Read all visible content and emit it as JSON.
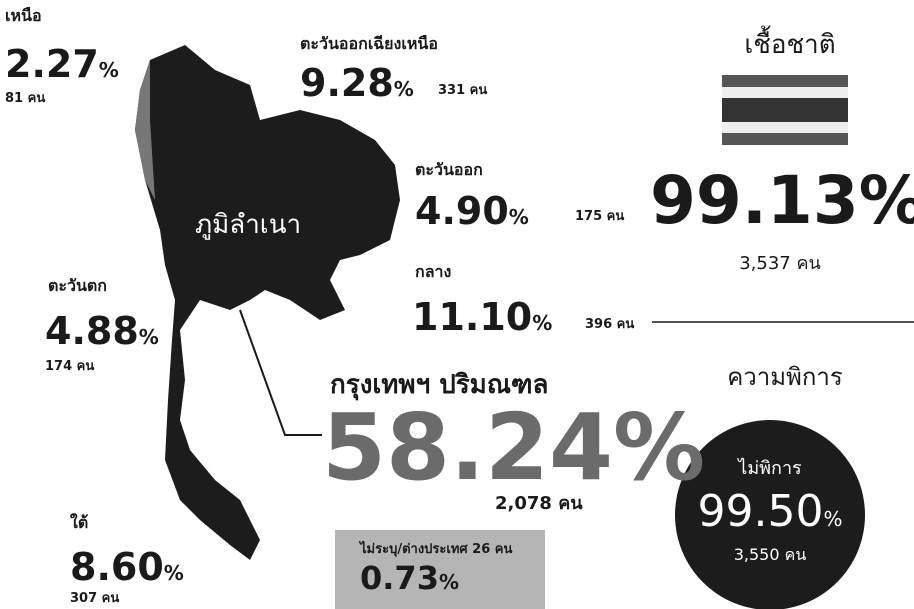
{
  "unit": "%",
  "map_label": "ภูมิลำเนา",
  "regions": [
    {
      "name": "เหนือ",
      "percent": "2.27",
      "count": "81 คน"
    },
    {
      "name": "ตะวันออกเฉียงเหนือ",
      "percent": "9.28",
      "count": "331 คน"
    },
    {
      "name": "ตะวันออก",
      "percent": "4.90",
      "count": "175 คน"
    },
    {
      "name": "กลาง",
      "percent": "11.10",
      "count": "396 คน"
    },
    {
      "name": "ตะวันตก",
      "percent": "4.88",
      "count": "174 คน"
    },
    {
      "name": "กรุงเทพฯ ปริมณฑล",
      "percent": "58.24",
      "count": "2,078 คน"
    },
    {
      "name": "ใต้",
      "percent": "8.60",
      "count": "307 คน"
    }
  ],
  "unspecified": {
    "label": "ไม่ระบุ/ต่างประเทศ 26 คน",
    "percent": "0.73"
  },
  "ethnicity": {
    "title": "เชื้อชาติ",
    "percent": "99.13",
    "count": "3,537 คน"
  },
  "disability": {
    "title": "ความพิการ",
    "label": "ไม่พิการ",
    "percent": "99.50",
    "count": "3,550 คน"
  }
}
